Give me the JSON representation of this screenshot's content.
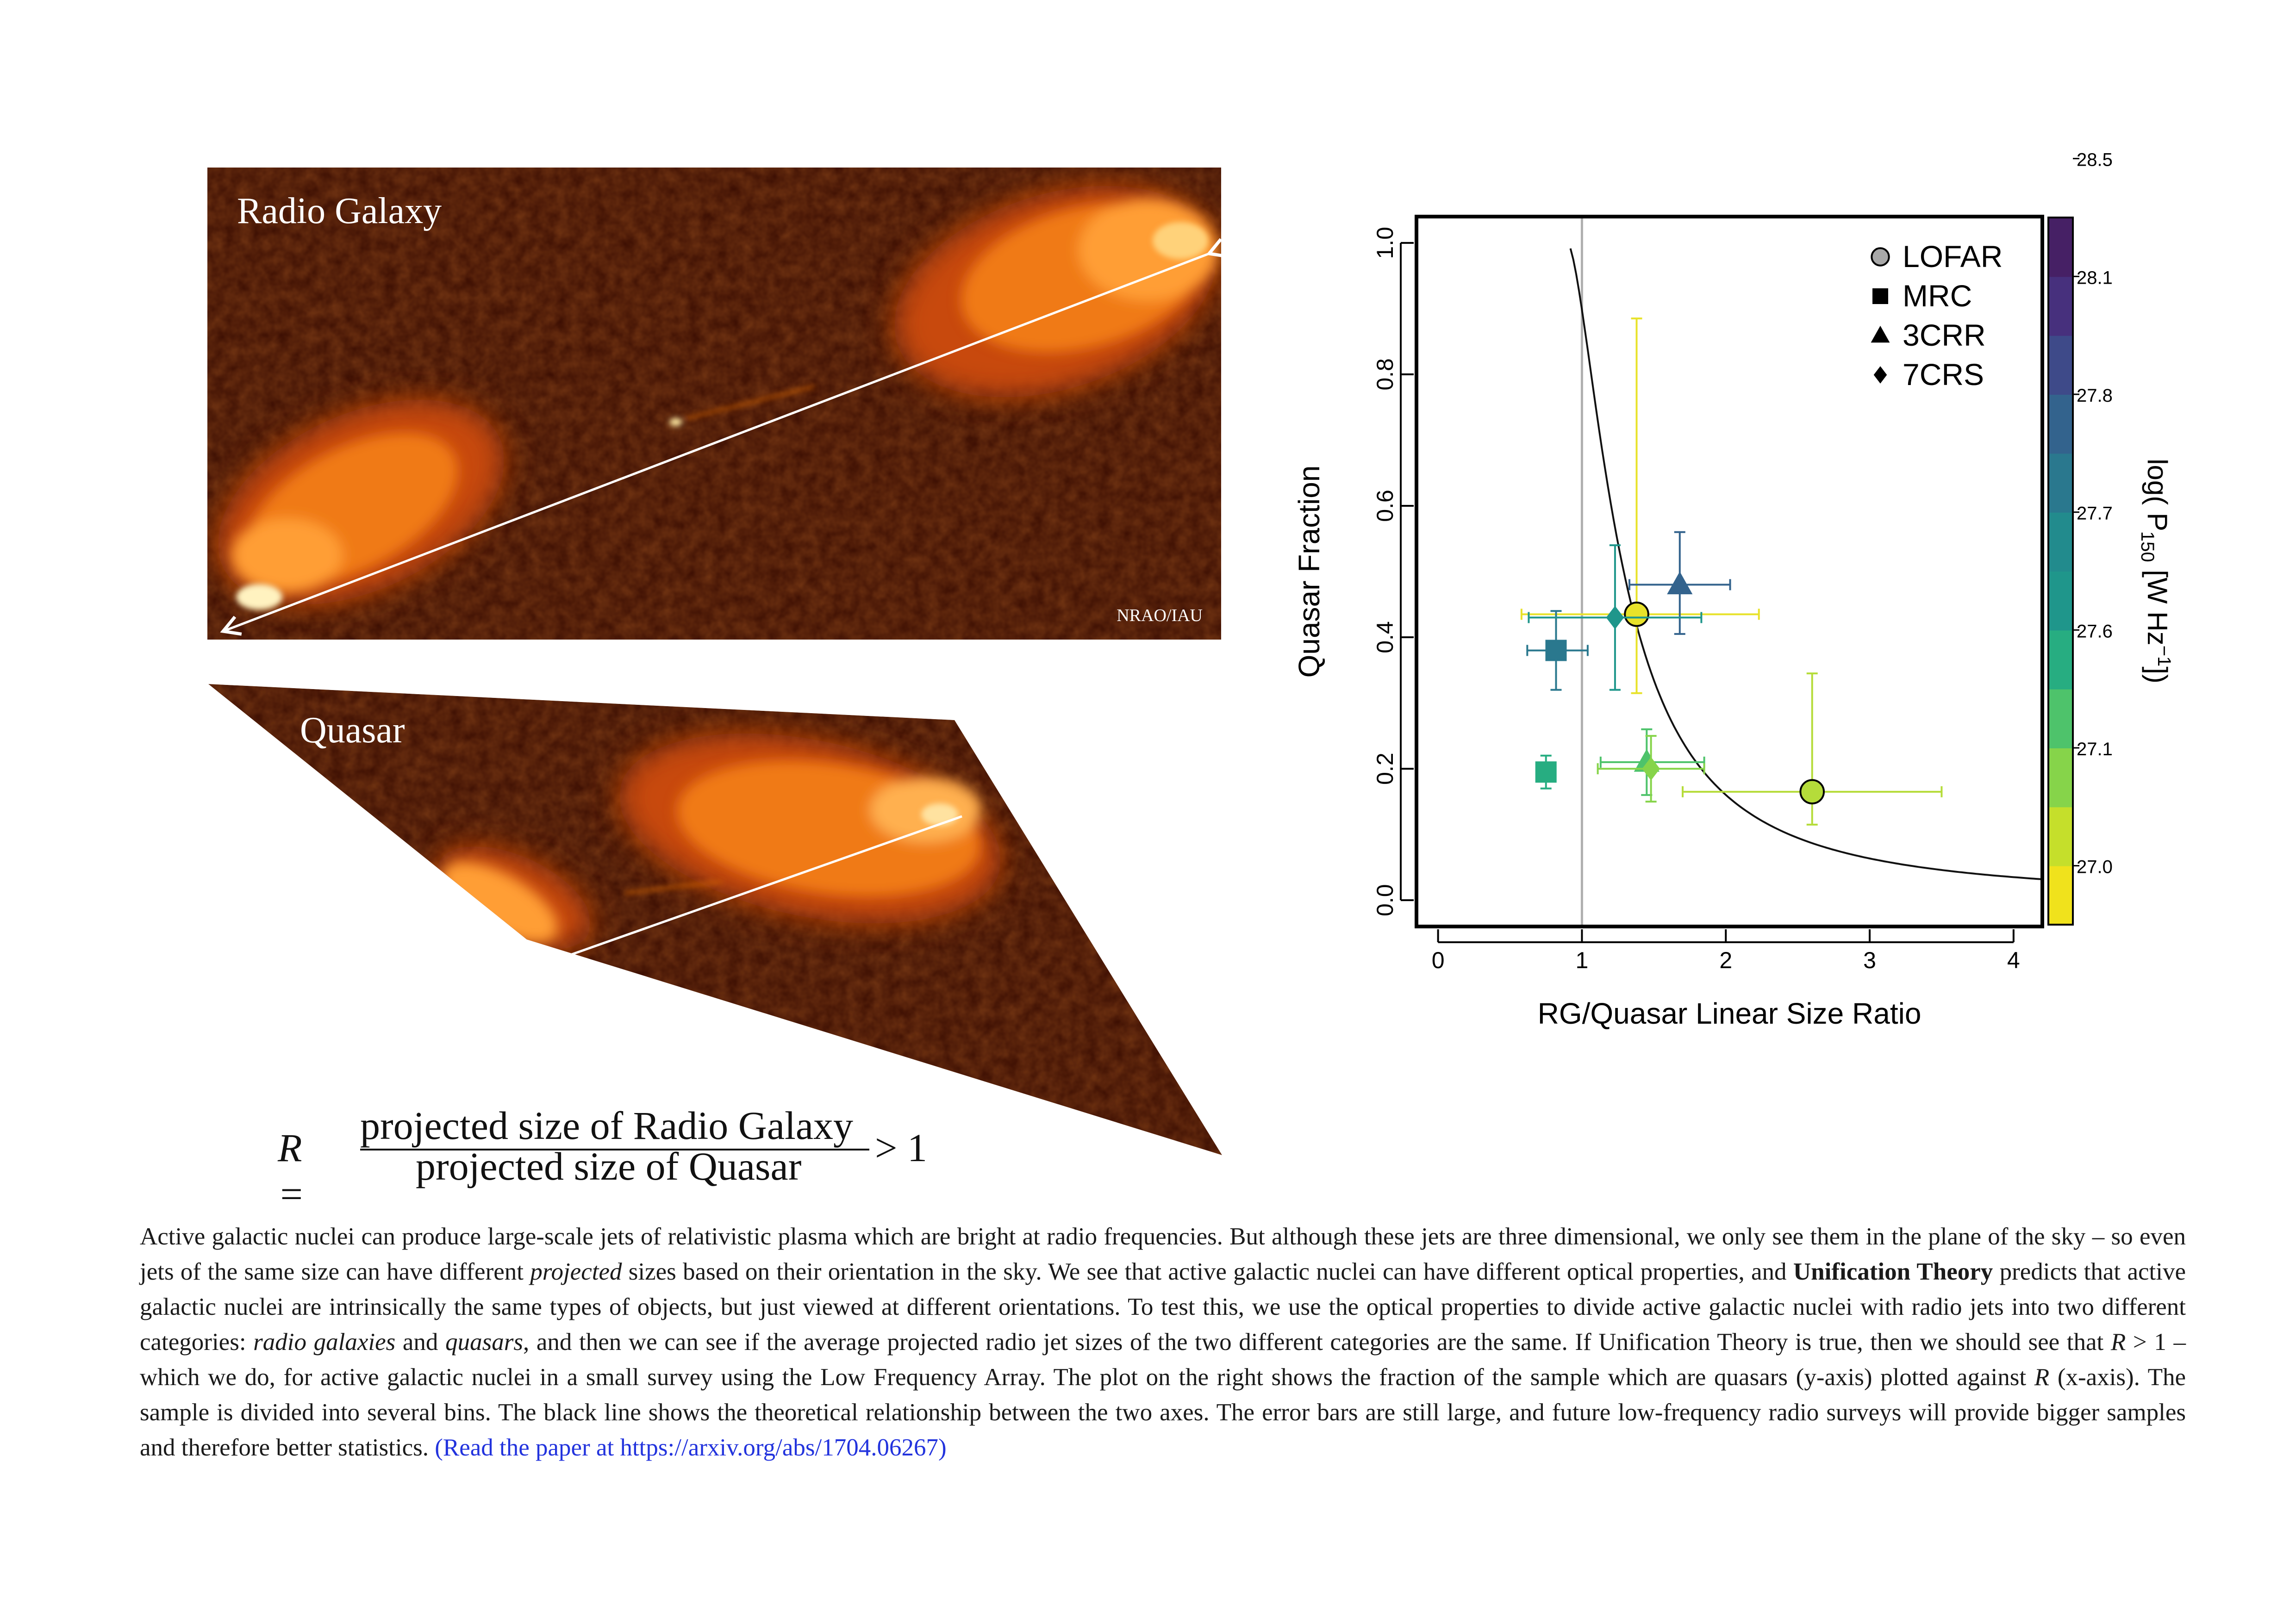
{
  "images": {
    "radio_galaxy_label": "Radio Galaxy",
    "credit": "NRAO/IAU",
    "quasar_label": "Quasar"
  },
  "equation": {
    "lhs": "R =",
    "numerator": "projected size of Radio Galaxy",
    "denominator": "projected size of Quasar",
    "rhs": "> 1"
  },
  "chart_data": {
    "type": "scatter",
    "xlabel": "RG/Quasar Linear Size Ratio",
    "ylabel": "Quasar Fraction",
    "xlim": [
      -0.15,
      4.2
    ],
    "ylim": [
      -0.04,
      1.04
    ],
    "xticks": [
      "0",
      "1",
      "2",
      "3",
      "4"
    ],
    "yticks": [
      "0.0",
      "0.2",
      "0.4",
      "0.6",
      "0.8",
      "1.0"
    ],
    "vertical_reference_line": 1,
    "theory_curve": "y = 1/(1+x^2)-style theoretical relation (black line)",
    "legend": [
      {
        "name": "LOFAR",
        "marker": "circle"
      },
      {
        "name": "MRC",
        "marker": "square"
      },
      {
        "name": "3CRR",
        "marker": "triangle"
      },
      {
        "name": "7CRS",
        "marker": "diamond"
      }
    ],
    "legend_position": "top-right",
    "colorbar": {
      "label_main": "log( P",
      "label_sub": "150",
      "label_unit": " [W Hz",
      "label_sup": "−1",
      "label_end": "])",
      "ticks": [
        "27.0",
        "27.1",
        "27.6",
        "27.7",
        "27.8",
        "28.1",
        "28.5"
      ],
      "colors": [
        "#f0e21c",
        "#c5df2b",
        "#86d44a",
        "#4ec36b",
        "#27ad81",
        "#1f968b",
        "#228b8d",
        "#2a788e",
        "#33638d",
        "#3e4a89",
        "#47307d",
        "#462065"
      ]
    },
    "points": [
      {
        "survey": "LOFAR",
        "x": 1.38,
        "y": 0.435,
        "xerr": [
          0.8,
          0.85
        ],
        "yerr": [
          0.12,
          0.45
        ],
        "color": "#e8e22a"
      },
      {
        "survey": "LOFAR",
        "x": 2.6,
        "y": 0.165,
        "xerr": [
          0.9,
          0.9
        ],
        "yerr": [
          0.05,
          0.18
        ],
        "color": "#b5dc3a"
      },
      {
        "survey": "MRC",
        "x": 0.82,
        "y": 0.38,
        "xerr": [
          0.2,
          0.22
        ],
        "yerr": [
          0.06,
          0.06
        ],
        "color": "#2a788e"
      },
      {
        "survey": "MRC",
        "x": 0.75,
        "y": 0.195,
        "xerr": [
          0.05,
          0.05
        ],
        "yerr": [
          0.025,
          0.025
        ],
        "color": "#27ad81"
      },
      {
        "survey": "3CRR",
        "x": 1.68,
        "y": 0.48,
        "xerr": [
          0.35,
          0.35
        ],
        "yerr": [
          0.075,
          0.08
        ],
        "color": "#33638d"
      },
      {
        "survey": "3CRR",
        "x": 1.45,
        "y": 0.21,
        "xerr": [
          0.32,
          0.4
        ],
        "yerr": [
          0.05,
          0.05
        ],
        "color": "#4ec36b"
      },
      {
        "survey": "7CRS",
        "x": 1.23,
        "y": 0.43,
        "xerr": [
          0.6,
          0.6
        ],
        "yerr": [
          0.11,
          0.11
        ],
        "color": "#1f968b"
      },
      {
        "survey": "7CRS",
        "x": 1.48,
        "y": 0.2,
        "xerr": [
          0.37,
          0.37
        ],
        "yerr": [
          0.05,
          0.05
        ],
        "color": "#86d44a"
      }
    ]
  },
  "caption": {
    "p1": "Active galactic nuclei can produce large-scale jets of relativistic plasma which are bright at radio frequencies. But although these jets are three dimensional, we only see them in the plane of the sky – so even jets of the same size can have different ",
    "projected": "projected",
    "p2": " sizes based on their orientation in the sky. We see that active galactic nuclei can have different optical properties, and ",
    "bold": "Unification Theory",
    "p3": " predicts that active galactic nuclei are intrinsically the same types of objects, but just viewed at different orientations. To test this, we use the optical properties to divide active galactic nuclei with radio jets into two different categories: ",
    "rg": "radio galaxies",
    "and": " and ",
    "q": "quasars",
    "p4": ", and then we can see if the average projected radio jet sizes of the two different categories are the same. If Unification Theory is true, then we should see that ",
    "r1": "R",
    "p5": " > 1 – which we do, for active galactic nuclei in a small survey using the Low Frequency Array. The plot on the right shows the fraction of the sample which are quasars (y-axis) plotted against ",
    "r2": "R",
    "p6": " (x-axis). The sample is divided into several bins. The black line shows the theoretical relationship between the two axes. The error bars are still large, and future low-frequency radio surveys will provide bigger samples and therefore better statistics. ",
    "link": "(Read the paper at https://arxiv.org/abs/1704.06267)"
  }
}
